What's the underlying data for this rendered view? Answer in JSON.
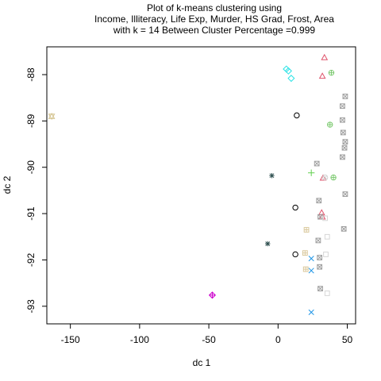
{
  "chart_data": {
    "type": "scatter",
    "title_lines": [
      "Plot of k-means clustering using",
      "Income, Illiteracy, Life Exp, Murder, HS Grad, Frost, Area",
      "with  k = 14 Between Cluster Percentage =0.999"
    ],
    "xlabel": "dc 1",
    "ylabel": "dc 2",
    "xlim": [
      -167,
      56
    ],
    "ylim": [
      -93.38,
      -87.4
    ],
    "xticks": [
      -150,
      -100,
      -50,
      0,
      50
    ],
    "yticks": [
      -93,
      -92,
      -91,
      -90,
      -89,
      -88
    ],
    "grid": false,
    "series": [
      {
        "shape": "circle",
        "color": "#000000",
        "points": [
          [
            13.5,
            -88.88
          ],
          [
            12.5,
            -90.87
          ],
          [
            12.5,
            -91.88
          ]
        ]
      },
      {
        "shape": "triangle",
        "color": "#DF536B",
        "points": [
          [
            33.5,
            -87.63
          ],
          [
            32.0,
            -88.03
          ],
          [
            32.5,
            -90.23
          ],
          [
            31.5,
            -90.98
          ],
          [
            32.0,
            -91.07
          ]
        ]
      },
      {
        "shape": "plus",
        "color": "#61D04F",
        "points": [
          [
            24.0,
            -90.12
          ]
        ]
      },
      {
        "shape": "x",
        "color": "#2297E6",
        "points": [
          [
            24.0,
            -91.97
          ],
          [
            24.0,
            -92.23
          ],
          [
            24.0,
            -93.13
          ]
        ]
      },
      {
        "shape": "diamond",
        "color": "#28E2E5",
        "points": [
          [
            6.0,
            -87.88
          ],
          [
            7.5,
            -87.92
          ],
          [
            9.5,
            -88.08
          ]
        ]
      },
      {
        "shape": "triangle-down",
        "color": "#CD0BBC",
        "points": []
      },
      {
        "shape": "boxed-x",
        "color": "#9E9E9E",
        "points": [
          [
            48.5,
            -88.47
          ],
          [
            46.5,
            -88.68
          ],
          [
            46.5,
            -88.98
          ],
          [
            47.0,
            -89.25
          ],
          [
            48.5,
            -89.45
          ],
          [
            48.0,
            -89.58
          ],
          [
            46.5,
            -89.78
          ],
          [
            28.0,
            -89.92
          ],
          [
            48.5,
            -90.58
          ],
          [
            29.5,
            -90.72
          ],
          [
            30.5,
            -91.07
          ],
          [
            47.5,
            -91.33
          ],
          [
            29.0,
            -91.58
          ],
          [
            30.0,
            -91.95
          ],
          [
            30.0,
            -92.15
          ],
          [
            30.5,
            -92.62
          ]
        ]
      },
      {
        "shape": "asterisk",
        "color": "#2E4F4F",
        "points": [
          [
            -4.5,
            -90.18
          ],
          [
            -7.5,
            -91.65
          ]
        ]
      },
      {
        "shape": "circle-plus",
        "color": "#7BC96F",
        "points": [
          [
            38.5,
            -87.96
          ],
          [
            37.5,
            -89.08
          ],
          [
            40.0,
            -90.22
          ]
        ]
      },
      {
        "shape": "star-of-david",
        "color": "#D4C38F",
        "points": [
          [
            -163.5,
            -88.9
          ]
        ]
      },
      {
        "shape": "circle-x",
        "color": "#D2D2D2",
        "points": [
          [
            34.0,
            -90.22
          ]
        ]
      },
      {
        "shape": "boxed-plus",
        "color": "#D9C79A",
        "points": [
          [
            20.5,
            -91.35
          ],
          [
            19.5,
            -91.85
          ],
          [
            20.0,
            -92.2
          ]
        ]
      },
      {
        "shape": "square",
        "color": "#D6D6D6",
        "points": [
          [
            34.0,
            -91.1
          ],
          [
            35.5,
            -91.5
          ],
          [
            34.5,
            -91.88
          ],
          [
            35.5,
            -92.72
          ]
        ]
      },
      {
        "shape": "diamond-plus",
        "color": "#CC00CC",
        "points": [
          [
            -47.5,
            -92.76
          ]
        ]
      }
    ]
  }
}
